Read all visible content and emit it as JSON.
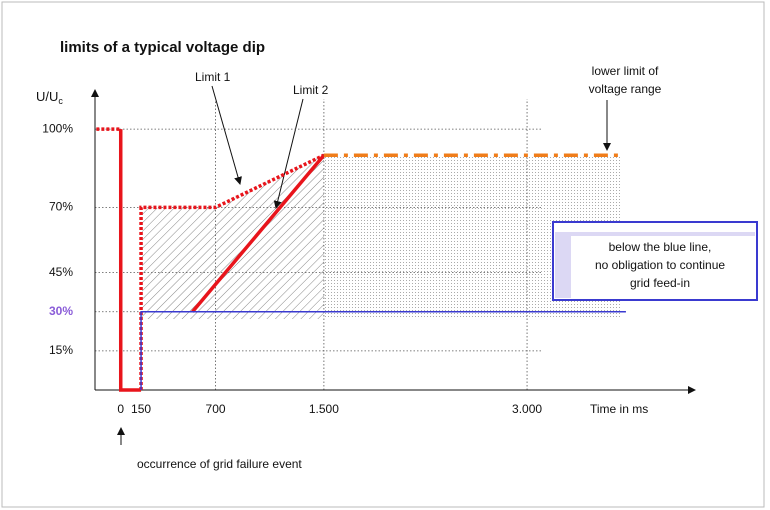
{
  "chart_data": {
    "type": "line",
    "title": "limits of a typical voltage dip",
    "ylabel": "U/U",
    "ylabel_sub": "c",
    "xlabel": "Time in ms",
    "xlim": [
      -190,
      4240
    ],
    "ylim": [
      0,
      115
    ],
    "xticks": [
      0,
      150,
      700,
      {
        "value": 1500,
        "label": "1.500"
      },
      {
        "value": 3000,
        "label": "3.000"
      }
    ],
    "yticks": [
      {
        "value": 100,
        "label": "100%"
      },
      {
        "value": 70,
        "label": "70%"
      },
      {
        "value": 45,
        "label": "45%"
      },
      {
        "value": 30,
        "label": "30%"
      },
      {
        "value": 15,
        "label": "15%"
      }
    ],
    "grid": true,
    "series": [
      {
        "name": "Limit 1",
        "color": "#e8141b",
        "style": "dotted",
        "x": [
          -180,
          0,
          null,
          150,
          150,
          700,
          1500
        ],
        "values": [
          100,
          100,
          null,
          0,
          70,
          70,
          90
        ]
      },
      {
        "color": "#e8141b",
        "style": "solid",
        "x": [
          0,
          0,
          150
        ],
        "values": [
          100,
          0,
          0
        ]
      },
      {
        "name": "Limit 2",
        "color": "#e8141b",
        "style": "solid",
        "x": [
          530,
          1500
        ],
        "values": [
          30,
          90
        ]
      },
      {
        "color": "#f07d1a",
        "style": "dashdot",
        "x": [
          1500,
          3680
        ],
        "values": [
          90,
          90
        ]
      },
      {
        "color": "#3a3ad0",
        "style": "thin",
        "x": [
          150,
          150,
          3730
        ],
        "values": [
          0,
          30,
          30
        ]
      }
    ],
    "annotations": {
      "lower_limit": [
        "lower limit of",
        "voltage range"
      ],
      "blue_note": [
        "below the blue line,",
        "no obligation to continue",
        "grid feed-in"
      ],
      "event": "occurrence of grid failure event"
    }
  }
}
